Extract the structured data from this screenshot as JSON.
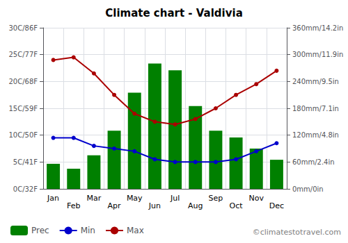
{
  "chart_data": {
    "type": "bar",
    "title": "Climate chart - Valdivia",
    "categories": [
      "Jan",
      "Feb",
      "Mar",
      "Apr",
      "May",
      "Jun",
      "Jul",
      "Aug",
      "Sep",
      "Oct",
      "Nov",
      "Dec"
    ],
    "series": [
      {
        "name": "Prec",
        "type": "bar",
        "axis": "y2",
        "color": "#008000",
        "values": [
          56,
          45,
          75,
          130,
          215,
          280,
          265,
          185,
          130,
          115,
          90,
          65
        ]
      },
      {
        "name": "Min",
        "type": "line",
        "color": "#0000cc",
        "marker": "circle",
        "values": [
          9.5,
          9.5,
          8.0,
          7.5,
          7.0,
          5.5,
          5.0,
          5.0,
          5.0,
          5.5,
          7.0,
          8.5
        ]
      },
      {
        "name": "Max",
        "type": "line",
        "color": "#aa0000",
        "marker": "circle",
        "values": [
          24.0,
          24.5,
          21.5,
          17.5,
          14.0,
          12.5,
          12.0,
          13.0,
          15.0,
          17.5,
          19.5,
          22.0
        ]
      }
    ],
    "ylim": [
      0,
      30
    ],
    "yticks": [
      {
        "value": 0,
        "label": "0C/32F"
      },
      {
        "value": 5,
        "label": "5C/41F"
      },
      {
        "value": 10,
        "label": "10C/50F"
      },
      {
        "value": 15,
        "label": "15C/59F"
      },
      {
        "value": 20,
        "label": "20C/68F"
      },
      {
        "value": 25,
        "label": "25C/77F"
      },
      {
        "value": 30,
        "label": "30C/86F"
      }
    ],
    "y2lim": [
      0,
      360
    ],
    "y2ticks": [
      {
        "value": 0,
        "label": "0mm/0in"
      },
      {
        "value": 60,
        "label": "60mm/2.4in"
      },
      {
        "value": 120,
        "label": "120mm/4.8in"
      },
      {
        "value": 180,
        "label": "180mm/7.1in"
      },
      {
        "value": 240,
        "label": "240mm/9.5in"
      },
      {
        "value": 300,
        "label": "300mm/11.9in"
      },
      {
        "value": 360,
        "label": "360mm/14.2in"
      }
    ],
    "grid": true,
    "legend": "lower left",
    "annotations": [
      "©climatestotravel.com"
    ]
  }
}
